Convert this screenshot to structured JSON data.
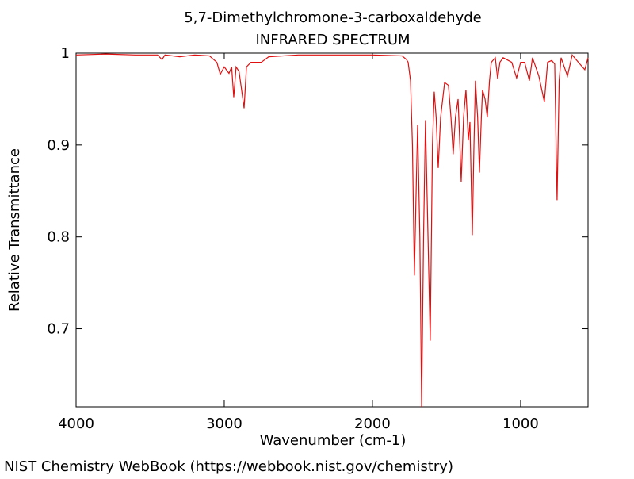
{
  "chart_data": {
    "type": "line",
    "title": "5,7-Dimethylchromone-3-carboxaldehyde",
    "subtitle": "INFRARED SPECTRUM",
    "xlabel": "Wavenumber (cm-1)",
    "ylabel": "Relative Transmittance",
    "source": "NIST Chemistry WebBook (https://webbook.nist.gov/chemistry)",
    "xlim": [
      4000,
      545
    ],
    "ylim": [
      0.615,
      1.0
    ],
    "xticks": [
      4000,
      3000,
      2000,
      1000
    ],
    "yticks": [
      0.7,
      0.8,
      0.9,
      1
    ],
    "grid": false,
    "x": [
      4000,
      3800,
      3600,
      3450,
      3420,
      3400,
      3300,
      3200,
      3100,
      3050,
      3027,
      3000,
      2968,
      2950,
      2936,
      2920,
      2900,
      2866,
      2850,
      2820,
      2750,
      2700,
      2500,
      2200,
      2000,
      1800,
      1770,
      1759,
      1743,
      1730,
      1717,
      1705,
      1695,
      1680,
      1668,
      1655,
      1642,
      1625,
      1610,
      1595,
      1583,
      1570,
      1556,
      1540,
      1513,
      1487,
      1470,
      1455,
      1440,
      1422,
      1410,
      1401,
      1385,
      1369,
      1360,
      1353,
      1342,
      1326,
      1315,
      1305,
      1290,
      1278,
      1265,
      1257,
      1240,
      1225,
      1210,
      1198,
      1171,
      1155,
      1140,
      1118,
      1060,
      1027,
      1000,
      973,
      941,
      920,
      877,
      840,
      818,
      790,
      770,
      754,
      740,
      727,
      684,
      652,
      610,
      567,
      545
    ],
    "series": [
      {
        "color": "#e01010",
        "values": [
          0.998,
          0.999,
          0.998,
          0.998,
          0.993,
          0.998,
          0.996,
          0.998,
          0.997,
          0.99,
          0.977,
          0.985,
          0.978,
          0.985,
          0.952,
          0.985,
          0.98,
          0.94,
          0.985,
          0.99,
          0.99,
          0.996,
          0.998,
          0.998,
          0.998,
          0.997,
          0.993,
          0.99,
          0.97,
          0.9,
          0.758,
          0.85,
          0.922,
          0.8,
          0.615,
          0.8,
          0.927,
          0.8,
          0.687,
          0.9,
          0.958,
          0.93,
          0.875,
          0.93,
          0.968,
          0.965,
          0.93,
          0.89,
          0.93,
          0.95,
          0.9,
          0.86,
          0.93,
          0.96,
          0.93,
          0.905,
          0.925,
          0.802,
          0.9,
          0.97,
          0.93,
          0.87,
          0.93,
          0.96,
          0.95,
          0.93,
          0.97,
          0.99,
          0.995,
          0.972,
          0.99,
          0.995,
          0.99,
          0.973,
          0.99,
          0.99,
          0.97,
          0.995,
          0.975,
          0.947,
          0.99,
          0.992,
          0.988,
          0.84,
          0.97,
          0.995,
          0.975,
          0.998,
          0.99,
          0.982,
          0.995
        ]
      }
    ]
  }
}
